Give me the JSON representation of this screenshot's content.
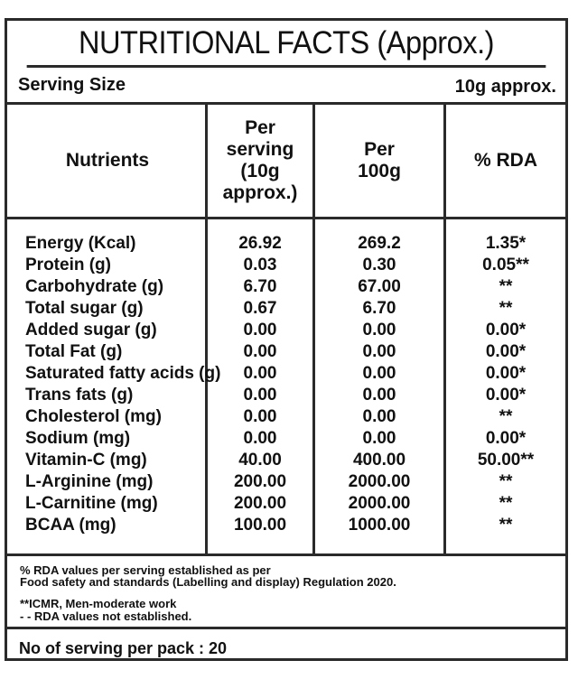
{
  "title": "NUTRITIONAL FACTS (Approx.)",
  "serving_size": {
    "label": "Serving Size",
    "value": "10g approx."
  },
  "headers": {
    "nutrients": "Nutrients",
    "per_serving": [
      "Per",
      "serving",
      "(10g",
      "approx.)"
    ],
    "per_100g": [
      "Per",
      "100g"
    ],
    "rda": "% RDA"
  },
  "rows": [
    {
      "name": "Energy (Kcal)",
      "per_serving": "26.92",
      "per_100g": "269.2",
      "rda": "1.35*"
    },
    {
      "name": "Protein (g)",
      "per_serving": "0.03",
      "per_100g": "0.30",
      "rda": "0.05**"
    },
    {
      "name": "Carbohydrate (g)",
      "per_serving": "6.70",
      "per_100g": "67.00",
      "rda": "**"
    },
    {
      "name": "Total sugar (g)",
      "per_serving": "0.67",
      "per_100g": "6.70",
      "rda": "**"
    },
    {
      "name": "Added sugar (g)",
      "per_serving": "0.00",
      "per_100g": "0.00",
      "rda": "0.00*"
    },
    {
      "name": "Total Fat (g)",
      "per_serving": "0.00",
      "per_100g": "0.00",
      "rda": "0.00*"
    },
    {
      "name": "Saturated fatty acids (g)",
      "per_serving": "0.00",
      "per_100g": "0.00",
      "rda": "0.00*"
    },
    {
      "name": "Trans fats (g)",
      "per_serving": "0.00",
      "per_100g": "0.00",
      "rda": "0.00*"
    },
    {
      "name": "Cholesterol (mg)",
      "per_serving": "0.00",
      "per_100g": "0.00",
      "rda": "**"
    },
    {
      "name": "Sodium (mg)",
      "per_serving": "0.00",
      "per_100g": "0.00",
      "rda": "0.00*"
    },
    {
      "name": "Vitamin-C (mg)",
      "per_serving": "40.00",
      "per_100g": "400.00",
      "rda": "50.00**"
    },
    {
      "name": "L-Arginine (mg)",
      "per_serving": "200.00",
      "per_100g": "2000.00",
      "rda": "**"
    },
    {
      "name": "L-Carnitine (mg)",
      "per_serving": "200.00",
      "per_100g": "2000.00",
      "rda": "**"
    },
    {
      "name": "BCAA (mg)",
      "per_serving": "100.00",
      "per_100g": "1000.00",
      "rda": "**"
    }
  ],
  "notes": {
    "line1": "% RDA values per serving established as per",
    "line2": "Food safety and standards (Labelling and display) Regulation 2020.",
    "line3": "**ICMR, Men-moderate work",
    "line4": "- - RDA values not established."
  },
  "footer": "No of serving per pack : 20"
}
